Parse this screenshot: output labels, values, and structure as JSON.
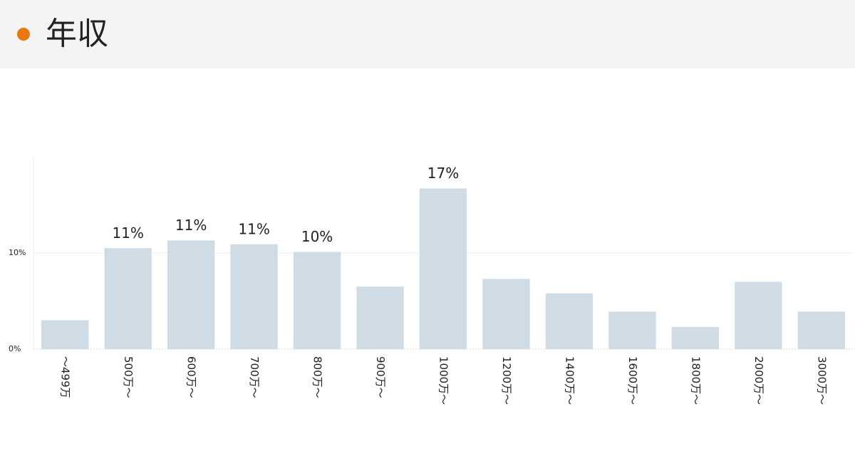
{
  "title": "年収",
  "chart_data": {
    "type": "bar",
    "categories": [
      "～499万",
      "500万～",
      "600万～",
      "700万～",
      "800万～",
      "900万～",
      "1000万～",
      "1200万～",
      "1400万～",
      "1600万～",
      "1800万～",
      "2000万～",
      "3000万～"
    ],
    "values": [
      3.0,
      10.5,
      11.3,
      10.9,
      10.1,
      6.5,
      16.7,
      7.3,
      5.8,
      3.9,
      2.3,
      7.0,
      3.9
    ],
    "value_labels": [
      null,
      "11%",
      "11%",
      "11%",
      "10%",
      null,
      "17%",
      null,
      null,
      null,
      null,
      null,
      null
    ],
    "color": "#cfdce5",
    "ylim": [
      0,
      20
    ],
    "yticks": [
      {
        "value": 0,
        "label": "0%"
      },
      {
        "value": 10,
        "label": "10%"
      }
    ],
    "grid": true
  }
}
